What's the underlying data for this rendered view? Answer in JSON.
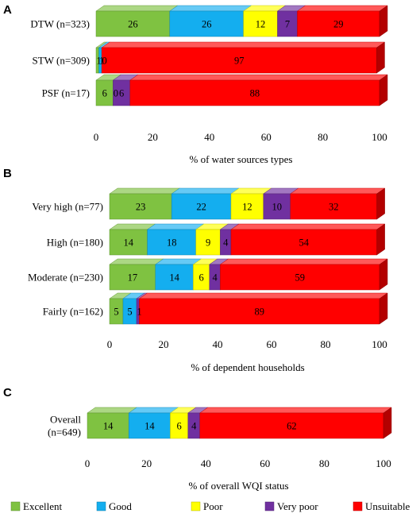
{
  "chart_data": [
    {
      "type": "bar",
      "orientation": "horizontal-stacked-3d",
      "panel": "A",
      "categories": [
        "DTW (n=323)",
        "STW (n=309)",
        "PSF  (n=17)"
      ],
      "series": [
        {
          "name": "Excellent",
          "values": [
            26,
            1,
            6
          ]
        },
        {
          "name": "Good",
          "values": [
            26,
            1,
            0
          ]
        },
        {
          "name": "Poor",
          "values": [
            12,
            0,
            0
          ]
        },
        {
          "name": "Very poor",
          "values": [
            7,
            0,
            6
          ]
        },
        {
          "name": "Unsuitable",
          "values": [
            29,
            97,
            88
          ]
        }
      ],
      "value_labels": [
        [
          "26",
          "26",
          "12",
          "7",
          "29"
        ],
        [
          "1",
          "1",
          "0",
          "",
          "97"
        ],
        [
          "6",
          "0",
          "",
          "6",
          "88"
        ]
      ],
      "xlabel": "% of water sources types",
      "xlim": [
        0,
        100
      ],
      "xticks": [
        "0",
        "20",
        "40",
        "60",
        "80",
        "100"
      ]
    },
    {
      "type": "bar",
      "orientation": "horizontal-stacked-3d",
      "panel": "B",
      "categories": [
        "Very high (n=77)",
        "High (n=180)",
        "Moderate (n=230)",
        "Fairly (n=162)"
      ],
      "series": [
        {
          "name": "Excellent",
          "values": [
            23,
            14,
            17,
            5
          ]
        },
        {
          "name": "Good",
          "values": [
            22,
            18,
            14,
            5
          ]
        },
        {
          "name": "Poor",
          "values": [
            12,
            9,
            6,
            0
          ]
        },
        {
          "name": "Very poor",
          "values": [
            10,
            4,
            4,
            1
          ]
        },
        {
          "name": "Unsuitable",
          "values": [
            32,
            54,
            59,
            89
          ]
        }
      ],
      "value_labels": [
        [
          "23",
          "22",
          "12",
          "10",
          "32"
        ],
        [
          "14",
          "18",
          "9",
          "4",
          "54"
        ],
        [
          "17",
          "14",
          "6",
          "4",
          "59"
        ],
        [
          "5",
          "5",
          "",
          "1",
          "89"
        ]
      ],
      "xlabel": "% of dependent households",
      "xlim": [
        0,
        100
      ],
      "xticks": [
        "0",
        "20",
        "40",
        "60",
        "80",
        "100"
      ]
    },
    {
      "type": "bar",
      "orientation": "horizontal-stacked-3d",
      "panel": "C",
      "categories": [
        "Overall (n=649)"
      ],
      "category_lines": [
        [
          "Overall",
          "(n=649)"
        ]
      ],
      "series": [
        {
          "name": "Excellent",
          "values": [
            14
          ]
        },
        {
          "name": "Good",
          "values": [
            14
          ]
        },
        {
          "name": "Poor",
          "values": [
            6
          ]
        },
        {
          "name": "Very poor",
          "values": [
            4
          ]
        },
        {
          "name": "Unsuitable",
          "values": [
            62
          ]
        }
      ],
      "value_labels": [
        [
          "14",
          "14",
          "6",
          "4",
          "62"
        ]
      ],
      "xlabel": "% of overall WQI status",
      "xlim": [
        0,
        100
      ],
      "xticks": [
        "0",
        "20",
        "40",
        "60",
        "80",
        "100"
      ]
    }
  ],
  "legend": {
    "placement": "bottom",
    "items": [
      {
        "label": "Excellent",
        "color": "#7fc241"
      },
      {
        "label": "Good",
        "color": "#14aeef"
      },
      {
        "label": "Poor",
        "color": "#ffff00"
      },
      {
        "label": "Very poor",
        "color": "#7030a0"
      },
      {
        "label": "Unsuitable",
        "color": "#ff0000"
      }
    ]
  },
  "colors": {
    "Excellent": "#7fc241",
    "Good": "#14aeef",
    "Poor": "#ffff00",
    "Very poor": "#7030a0",
    "Unsuitable": "#ff0000"
  }
}
